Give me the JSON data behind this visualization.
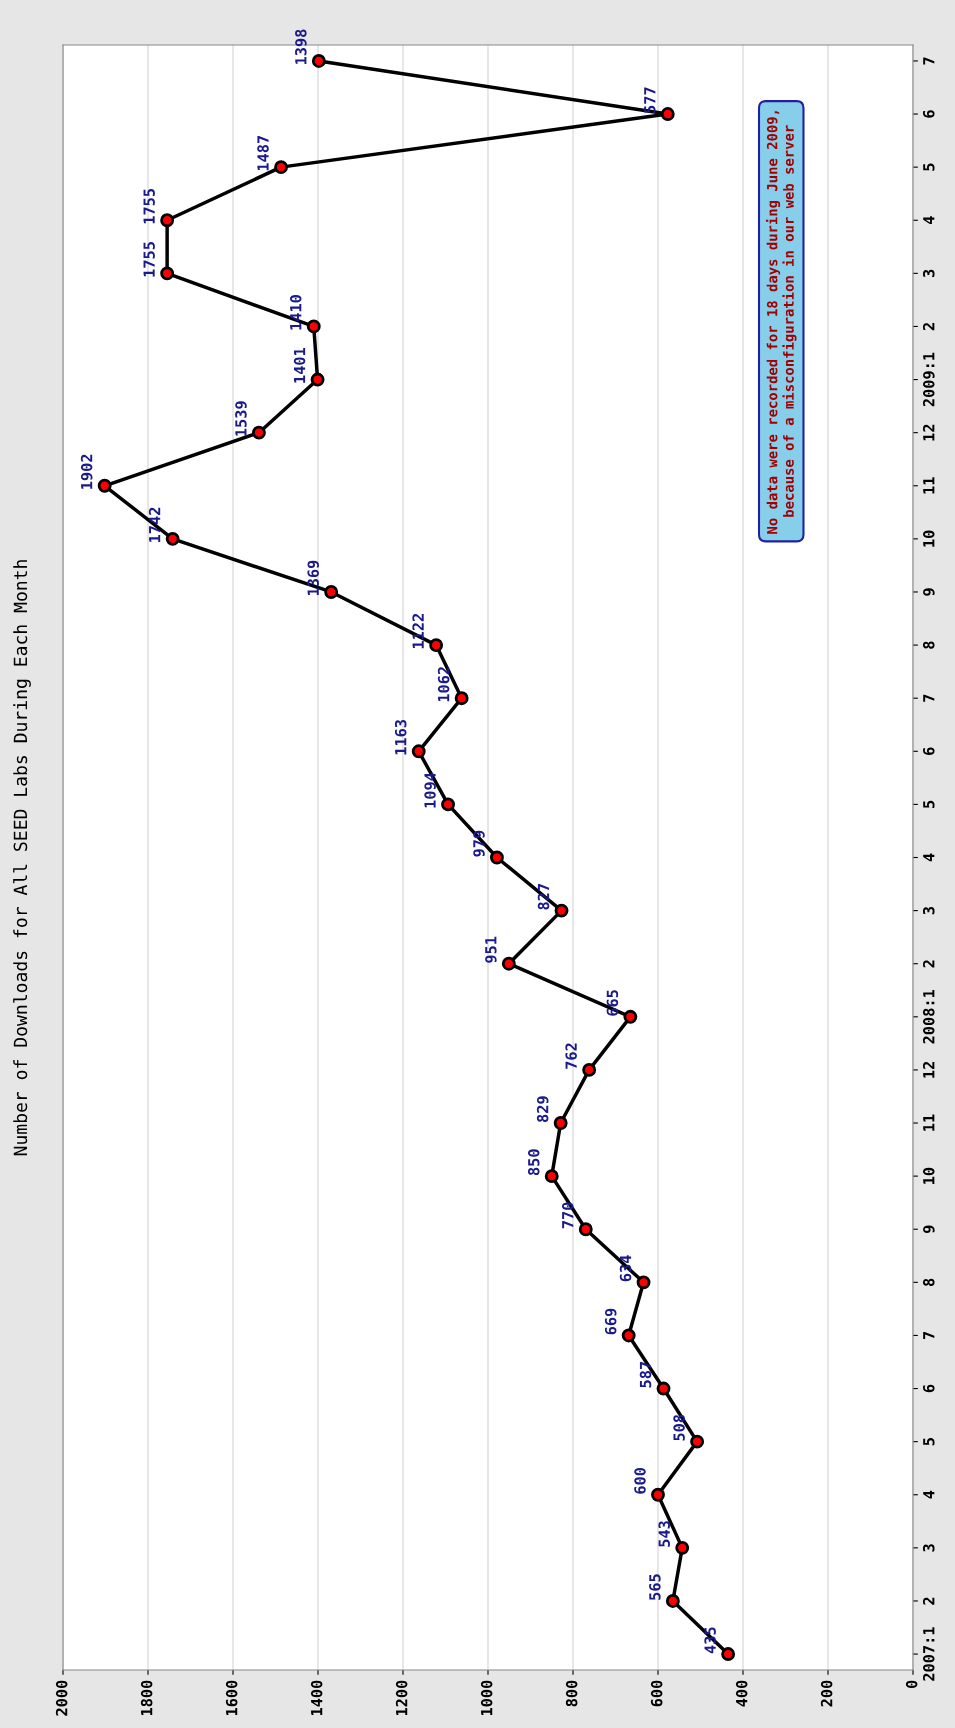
{
  "chart_data": {
    "type": "line",
    "orientation": "horizontal",
    "title": "Number of Downloads for All SEED Labs During Each Month",
    "categories": [
      "7",
      "6",
      "5",
      "4",
      "3",
      "2",
      "2009:1",
      "12",
      "11",
      "10",
      "9",
      "8",
      "7",
      "6",
      "5",
      "4",
      "3",
      "2",
      "2008:1",
      "12",
      "11",
      "10",
      "9",
      "8",
      "7",
      "6",
      "5",
      "4",
      "3",
      "2",
      "2007:1"
    ],
    "series": [
      {
        "color": "#000000",
        "values": [
          1398,
          577,
          1487,
          1755,
          1755,
          1410,
          1401,
          1539,
          1902,
          1742,
          1369,
          1122,
          1062,
          1163,
          1094,
          979,
          827,
          951,
          665,
          762,
          829,
          850,
          770,
          634,
          669,
          587,
          508,
          600,
          543,
          565,
          435
        ]
      }
    ],
    "xlim": [
      2000,
      0
    ],
    "xticks": [
      2000,
      1800,
      1600,
      1400,
      1200,
      1000,
      800,
      600,
      400,
      200,
      0
    ],
    "grid": "x",
    "marker": "circle",
    "line_style": "solid",
    "data_labels": true,
    "annotations": [
      "No data were recorded for 18 days during June 2009,\nbecause of a misconfiguration in our web server"
    ]
  }
}
